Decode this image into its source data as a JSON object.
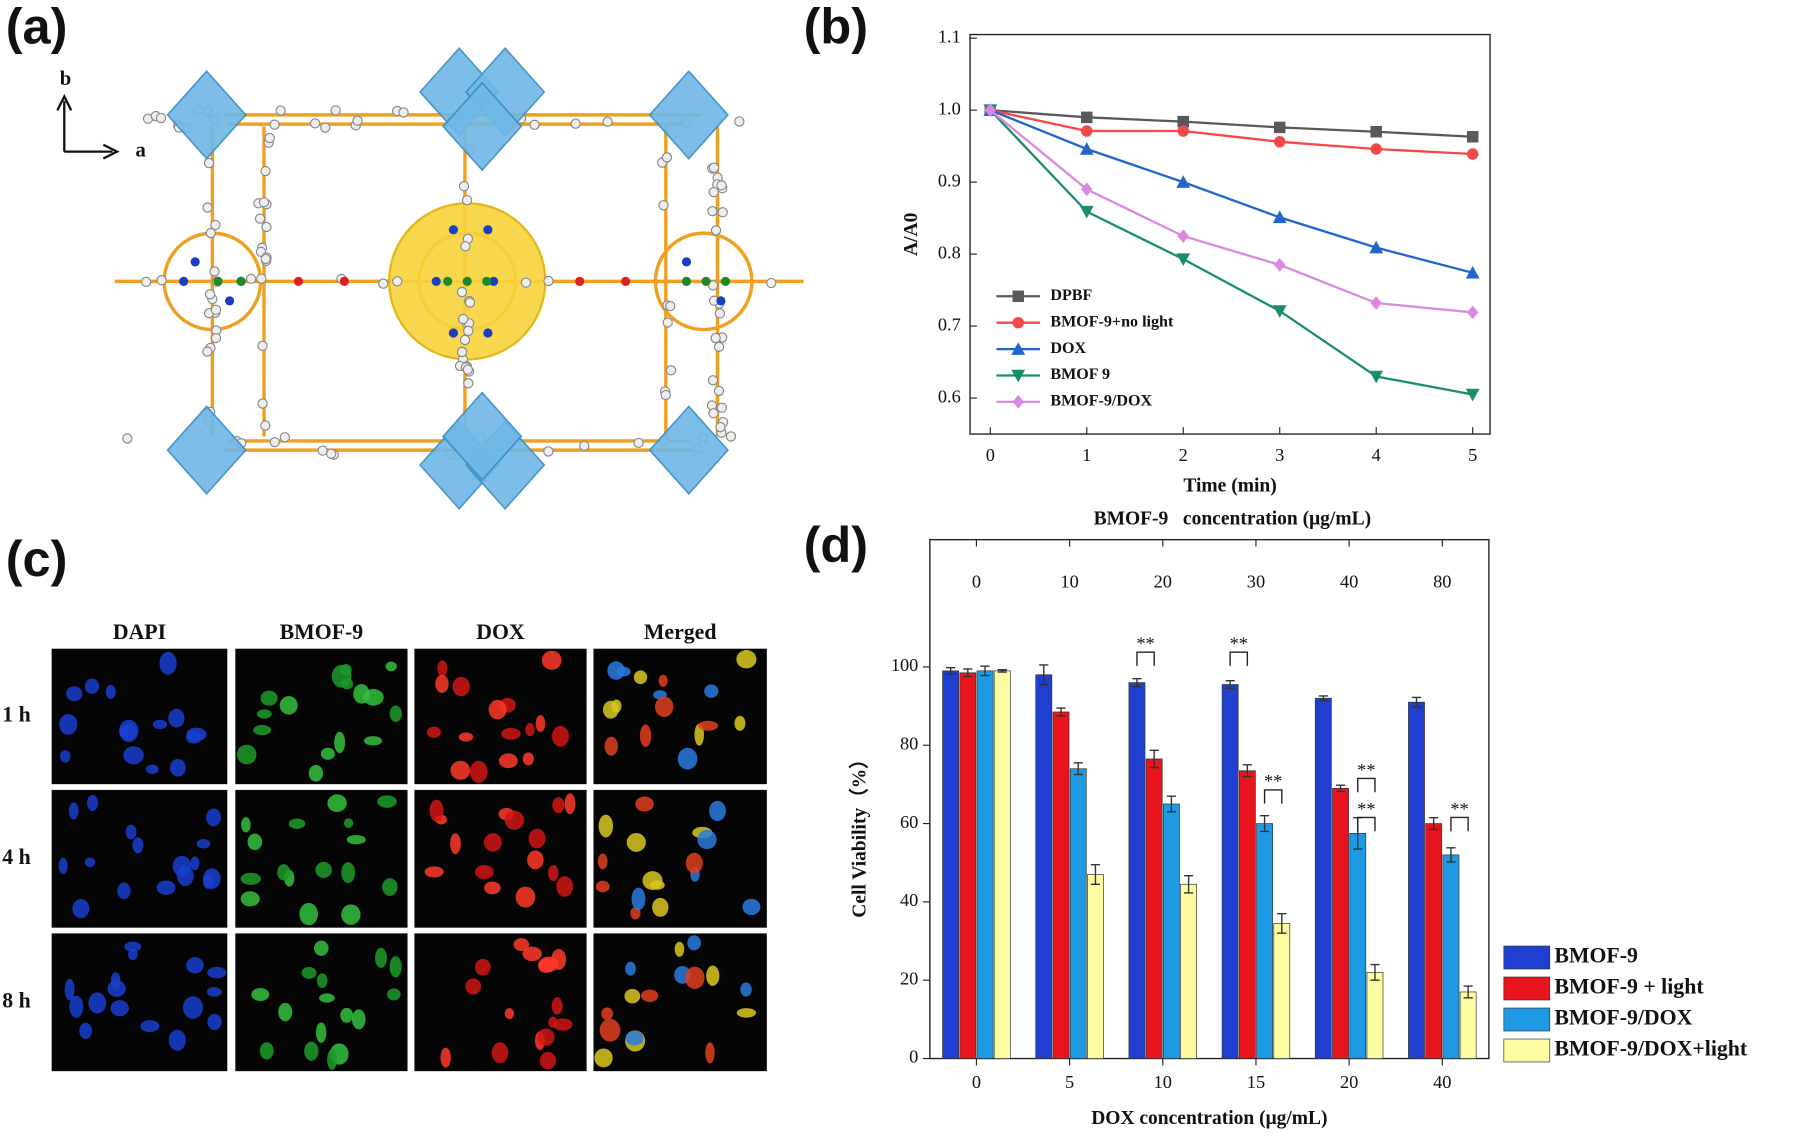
{
  "panels": {
    "a": {
      "label": "(a)",
      "axis_b": "b",
      "axis_a": "a"
    },
    "b": {
      "label": "(b)"
    },
    "c": {
      "label": "(c)",
      "columns": [
        "DAPI",
        "BMOF-9",
        "DOX",
        "Merged"
      ],
      "rows": [
        "1 h",
        "4 h",
        "8 h"
      ]
    },
    "d": {
      "label": "(d)",
      "significance": [
        "**",
        "**",
        "**",
        "**",
        "**",
        "**"
      ]
    }
  },
  "chart_data": [
    {
      "type": "line",
      "x": [
        0,
        1,
        2,
        3,
        4,
        5
      ],
      "xlim": [
        -0.21,
        5.18
      ],
      "xticks": [
        0,
        1,
        2,
        3,
        4,
        5
      ],
      "ylim": [
        0.55,
        1.105
      ],
      "yticks": [
        0.6,
        0.7,
        0.8,
        0.9,
        {
          "value": 1.0,
          "label": "1.0"
        },
        1.1
      ],
      "x_label": "Time (min)",
      "y_label": "A/A0",
      "legend": "lower left",
      "series": [
        {
          "name": "DPBF",
          "color": "#595959",
          "marker": "square",
          "values": [
            1.0,
            0.99,
            0.984,
            0.976,
            0.97,
            0.963
          ]
        },
        {
          "name": "BMOF-9+no light",
          "color": "#f5484b",
          "marker": "circle",
          "values": [
            1.0,
            0.971,
            0.971,
            0.956,
            0.946,
            0.939
          ]
        },
        {
          "name": "DOX",
          "color": "#2066cc",
          "marker": "triangle-up",
          "values": [
            1.0,
            0.946,
            0.9,
            0.851,
            0.809,
            0.774
          ]
        },
        {
          "name": "BMOF 9",
          "color": "#17906a",
          "marker": "triangle-down",
          "values": [
            1.0,
            0.859,
            0.793,
            0.721,
            0.63,
            0.605
          ]
        },
        {
          "name": "BMOF-9/DOX",
          "color": "#d98ae0",
          "marker": "diamond",
          "values": [
            1.0,
            0.89,
            0.825,
            0.785,
            0.732,
            0.719
          ]
        }
      ]
    },
    {
      "type": "bar",
      "categories": [
        "0",
        "5",
        "10",
        "15",
        "20",
        "40"
      ],
      "top_categories": [
        "0",
        "10",
        "20",
        "30",
        "40",
        "80"
      ],
      "x_label": "DOX concentration (μg/mL)",
      "top_label": "BMOF-9   concentration (μg/mL)",
      "y_label": "Cell Viability（%）",
      "ylim": [
        0,
        132.5
      ],
      "yticks": [
        0,
        20,
        40,
        60,
        80,
        100
      ],
      "legend": "outside right",
      "series": [
        {
          "name": "BMOF-9",
          "color": "#1f3fd0",
          "values": [
            99,
            98,
            96,
            95.5,
            92,
            91
          ],
          "errors": [
            0.8,
            2.5,
            1,
            1,
            0.6,
            1.2
          ]
        },
        {
          "name": "BMOF-9 + light",
          "color": "#e8141e",
          "values": [
            98.5,
            88.5,
            76.5,
            73.5,
            69,
            60
          ],
          "errors": [
            1,
            1,
            2.2,
            1.5,
            0.8,
            1.5
          ]
        },
        {
          "name": "BMOF-9/DOX",
          "color": "#1e9ae5",
          "values": [
            99,
            74,
            65,
            60,
            57.5,
            52
          ],
          "errors": [
            1.2,
            1.5,
            2,
            2,
            4,
            1.8
          ]
        },
        {
          "name": "BMOF-9/DOX+light",
          "color": "#fdfca0",
          "values": [
            99,
            47,
            44.5,
            34.5,
            22,
            17
          ],
          "errors": [
            0.3,
            2.5,
            2.2,
            2.5,
            2,
            1.5
          ]
        }
      ]
    }
  ]
}
